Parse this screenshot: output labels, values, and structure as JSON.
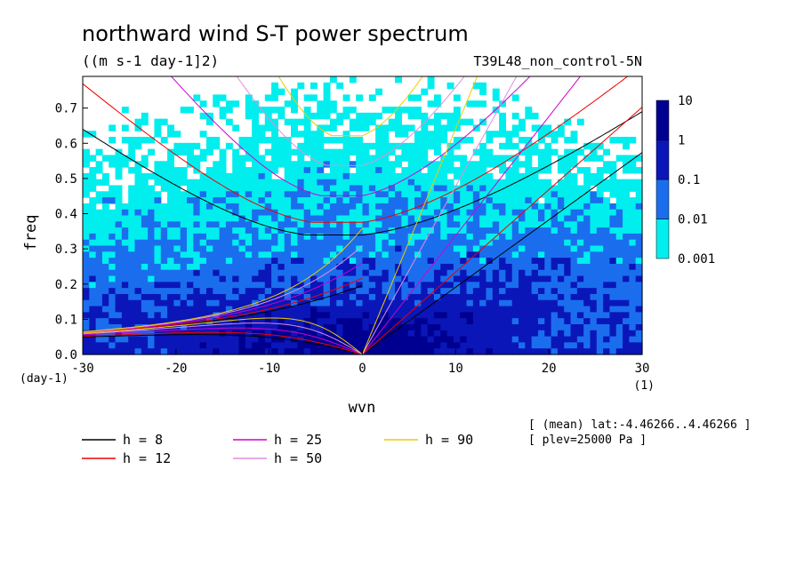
{
  "chart_data": {
    "type": "heatmap",
    "title": "northward wind S-T power spectrum",
    "units": "((m s-1 day-1]2)",
    "run_label": "T39L48_non_control-5N",
    "xlabel": "wvn",
    "ylabel": "freq",
    "x_unit_label": "(1)",
    "y_unit_label": "(day-1)",
    "xlim": [
      -30,
      30
    ],
    "ylim": [
      0,
      0.79
    ],
    "x_ticks": [
      {
        "value": -30,
        "label": "-30"
      },
      {
        "value": -20,
        "label": "-20"
      },
      {
        "value": -10,
        "label": "-10"
      },
      {
        "value": 0,
        "label": "0"
      },
      {
        "value": 10,
        "label": "10"
      },
      {
        "value": 20,
        "label": "20"
      },
      {
        "value": 30,
        "label": "30"
      }
    ],
    "y_ticks": [
      {
        "value": 0.0,
        "label": "0.0"
      },
      {
        "value": 0.1,
        "label": "0.1"
      },
      {
        "value": 0.2,
        "label": "0.2"
      },
      {
        "value": 0.3,
        "label": "0.3"
      },
      {
        "value": 0.4,
        "label": "0.4"
      },
      {
        "value": 0.5,
        "label": "0.5"
      },
      {
        "value": 0.6,
        "label": "0.6"
      },
      {
        "value": 0.7,
        "label": "0.7"
      }
    ],
    "color_levels": [
      {
        "label": "0.001",
        "color": "#00eeee"
      },
      {
        "label": "0.01",
        "color": "#1a6eee"
      },
      {
        "label": "0.1",
        "color": "#0a16b8"
      },
      {
        "label": "1",
        "color": "#000090"
      },
      {
        "label": "10",
        "color": "#4b0aa8"
      }
    ],
    "info": [
      "[ (mean) lat:-4.46266..4.46266 ]",
      "[ plev=25000 Pa ]"
    ],
    "dispersion_curves": [
      {
        "label": "h =  8",
        "h": 8,
        "color": "#000000"
      },
      {
        "label": "h = 12",
        "h": 12,
        "color": "#ee0000"
      },
      {
        "label": "h = 25",
        "h": 25,
        "color": "#d000d0"
      },
      {
        "label": "h = 50",
        "h": 50,
        "color": "#e08ee0"
      },
      {
        "label": "h = 90",
        "h": 90,
        "color": "#eecc00"
      }
    ]
  }
}
